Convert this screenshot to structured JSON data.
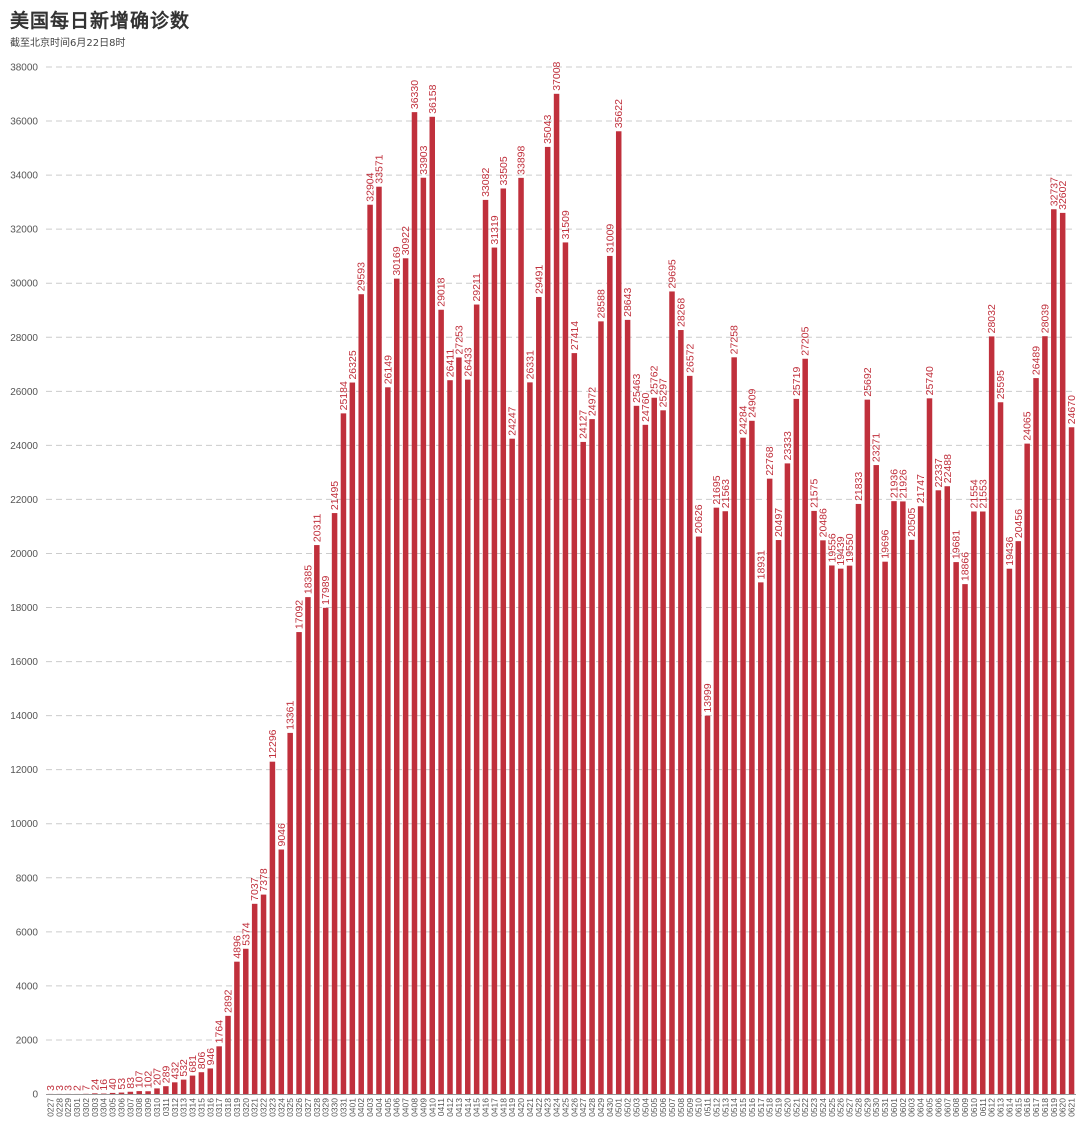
{
  "title": "美国每日新增确诊数",
  "subtitle": "截至北京时间6月22日8时",
  "colors": {
    "bar": "#c0303c",
    "label": "#c0303c",
    "grid": "#cccccc",
    "axis_text": "#555555"
  },
  "chart_data": {
    "type": "bar",
    "title": "美国每日新增确诊数",
    "subtitle": "截至北京时间6月22日8时",
    "xlabel": "",
    "ylabel": "",
    "ylim": [
      0,
      38000
    ],
    "yticks": [
      0,
      2000,
      4000,
      6000,
      8000,
      10000,
      12000,
      14000,
      16000,
      18000,
      20000,
      22000,
      24000,
      26000,
      28000,
      30000,
      32000,
      34000,
      36000,
      38000
    ],
    "grid": true,
    "categories": [
      "0227",
      "0228",
      "0229",
      "0301",
      "0302",
      "0303",
      "0304",
      "0305",
      "0306",
      "0307",
      "0308",
      "0309",
      "0310",
      "0311",
      "0312",
      "0313",
      "0314",
      "0315",
      "0316",
      "0317",
      "0318",
      "0319",
      "0320",
      "0321",
      "0322",
      "0323",
      "0324",
      "0325",
      "0326",
      "0327",
      "0328",
      "0329",
      "0330",
      "0331",
      "0401",
      "0402",
      "0403",
      "0404",
      "0405",
      "0406",
      "0407",
      "0408",
      "0409",
      "0410",
      "0411",
      "0412",
      "0413",
      "0414",
      "0415",
      "0416",
      "0417",
      "0418",
      "0419",
      "0420",
      "0421",
      "0422",
      "0423",
      "0424",
      "0425",
      "0426",
      "0427",
      "0428",
      "0429",
      "0430",
      "0501",
      "0502",
      "0503",
      "0504",
      "0505",
      "0506",
      "0507",
      "0508",
      "0509",
      "0510",
      "0511",
      "0512",
      "0513",
      "0514",
      "0515",
      "0516",
      "0517",
      "0518",
      "0519",
      "0520",
      "0521",
      "0522",
      "0523",
      "0524",
      "0525",
      "0526",
      "0527",
      "0528",
      "0529",
      "0530",
      "0531",
      "0601",
      "0602",
      "0603",
      "0604",
      "0605",
      "0606",
      "0607",
      "0608",
      "0609",
      "0610",
      "0611",
      "0612",
      "0613",
      "0614",
      "0615",
      "0616",
      "0617",
      "0618",
      "0619",
      "0620",
      "0621"
    ],
    "values": [
      3,
      3,
      3,
      2,
      7,
      24,
      16,
      40,
      53,
      83,
      107,
      102,
      207,
      289,
      432,
      532,
      681,
      806,
      946,
      1764,
      2892,
      4896,
      5374,
      7037,
      7378,
      12296,
      9046,
      13361,
      17092,
      18385,
      20311,
      17989,
      21495,
      25184,
      26325,
      29593,
      32904,
      33571,
      26149,
      30169,
      30922,
      36330,
      33903,
      36158,
      29018,
      26411,
      27253,
      26433,
      29211,
      33082,
      31319,
      33505,
      24247,
      33898,
      26331,
      29491,
      35043,
      37008,
      31509,
      27414,
      24127,
      24972,
      28588,
      31009,
      35622,
      28643,
      25463,
      24760,
      25762,
      25297,
      29695,
      28268,
      26572,
      20626,
      13999,
      21695,
      21563,
      27258,
      24284,
      24909,
      18931,
      22768,
      20497,
      23333,
      25719,
      27205,
      21575,
      20486,
      19556,
      19439,
      19550,
      21833,
      25692,
      23271,
      19696,
      21936,
      21926,
      20505,
      21747,
      25740,
      22337,
      22488,
      19681,
      18866,
      21554,
      21553,
      28032,
      25595,
      19436,
      20456,
      24065,
      26489,
      28039,
      32737,
      32602,
      24670
    ]
  }
}
